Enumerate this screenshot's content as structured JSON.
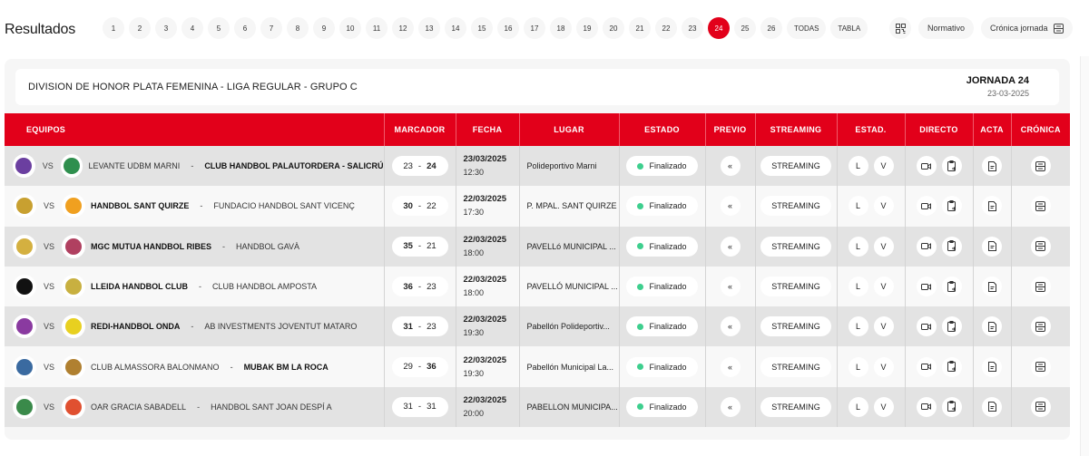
{
  "header": {
    "title": "Resultados",
    "rounds": [
      "1",
      "2",
      "3",
      "4",
      "5",
      "6",
      "7",
      "8",
      "9",
      "10",
      "11",
      "12",
      "13",
      "14",
      "15",
      "16",
      "17",
      "18",
      "19",
      "20",
      "21",
      "22",
      "23",
      "24",
      "25",
      "26"
    ],
    "active_round": "24",
    "todas_label": "TODAS",
    "tabla_label": "TABLA",
    "normativo_label": "Normativo",
    "cronica_jornada_label": "Crónica jornada"
  },
  "competition": {
    "name": "DIVISION DE HONOR PLATA FEMENINA - LIGA REGULAR - GRUPO C",
    "jornada": "JORNADA 24",
    "date": "23-03-2025"
  },
  "table": {
    "columns": [
      "EQUIPOS",
      "MARCADOR",
      "FECHA",
      "LUGAR",
      "ESTADO",
      "PREVIO",
      "STREAMING",
      "ESTAD.",
      "DIRECTO",
      "ACTA",
      "CRÓNICA"
    ],
    "vs_label": "VS",
    "streaming_label": "STREAMING",
    "estad_local": "L",
    "estad_visitor": "V",
    "previo_icon": "«",
    "rows": [
      {
        "home": "LEVANTE UDBM MARNI",
        "away": "CLUB HANDBOL PALAUTORDERA - SALICRÚ",
        "winner": "away",
        "home_score": "23",
        "away_score": "24",
        "date": "23/03/2025",
        "time": "12:30",
        "venue": "Polideportivo Marni",
        "status": "Finalizado",
        "home_color": "#6b3fa0",
        "away_color": "#2f8f4e"
      },
      {
        "home": "HANDBOL SANT QUIRZE",
        "away": "FUNDACIO HANDBOL SANT VICENÇ",
        "winner": "home",
        "home_score": "30",
        "away_score": "22",
        "date": "22/03/2025",
        "time": "17:30",
        "venue": "P. MPAL. SANT QUIRZE",
        "status": "Finalizado",
        "home_color": "#c8a030",
        "away_color": "#f0a020"
      },
      {
        "home": "MGC MUTUA HANDBOL RIBES",
        "away": "HANDBOL GAVÀ",
        "winner": "home",
        "home_score": "35",
        "away_score": "21",
        "date": "22/03/2025",
        "time": "18:00",
        "venue": "PAVELLó MUNICIPAL ...",
        "status": "Finalizado",
        "home_color": "#d4b040",
        "away_color": "#b04060"
      },
      {
        "home": "LLEIDA HANDBOL CLUB",
        "away": "CLUB HANDBOL AMPOSTA",
        "winner": "home",
        "home_score": "36",
        "away_score": "23",
        "date": "22/03/2025",
        "time": "18:00",
        "venue": "PAVELLÓ MUNICIPAL ...",
        "status": "Finalizado",
        "home_color": "#111111",
        "away_color": "#c8b040"
      },
      {
        "home": "REDI-HANDBOL ONDA",
        "away": "AB INVESTMENTS JOVENTUT MATARO",
        "winner": "home",
        "home_score": "31",
        "away_score": "23",
        "date": "22/03/2025",
        "time": "19:30",
        "venue": "Pabellón Polideportiv...",
        "status": "Finalizado",
        "home_color": "#8a3aa0",
        "away_color": "#e8d020"
      },
      {
        "home": "CLUB ALMASSORA BALONMANO",
        "away": "MUBAK BM LA ROCA",
        "winner": "away",
        "home_score": "29",
        "away_score": "36",
        "date": "22/03/2025",
        "time": "19:30",
        "venue": "Pabellón Municipal La...",
        "status": "Finalizado",
        "home_color": "#3a6aa0",
        "away_color": "#b08030"
      },
      {
        "home": "OAR GRACIA SABADELL",
        "away": "HANDBOL SANT JOAN DESPÍ A",
        "winner": "none",
        "home_score": "31",
        "away_score": "31",
        "date": "22/03/2025",
        "time": "20:00",
        "venue": "PABELLON MUNICIPA...",
        "status": "Finalizado",
        "home_color": "#3a8a4a",
        "away_color": "#e05030"
      }
    ]
  },
  "colors": {
    "accent": "#e2001a",
    "status_ok": "#3ecf8e"
  }
}
